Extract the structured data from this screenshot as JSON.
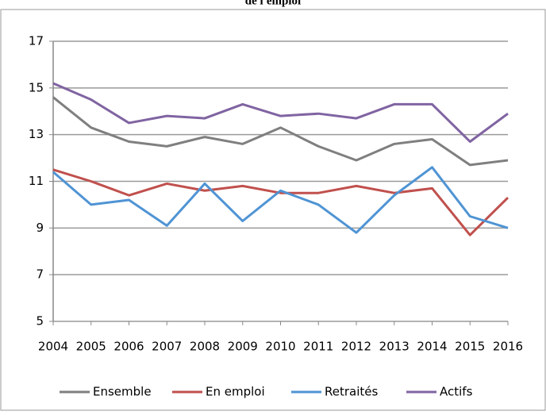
{
  "chart_data": {
    "type": "line",
    "title": "de l'emploi",
    "categories": [
      "2004",
      "2005",
      "2006",
      "2007",
      "2008",
      "2009",
      "2010",
      "2011",
      "2012",
      "2013",
      "2014",
      "2015",
      "2016"
    ],
    "series": [
      {
        "name": "Ensemble",
        "color": "#7f7f7f",
        "values": [
          14.6,
          13.3,
          12.7,
          12.5,
          12.9,
          12.6,
          13.3,
          12.5,
          11.9,
          12.6,
          12.8,
          11.7,
          11.9
        ]
      },
      {
        "name": "En emploi",
        "color": "#c0504d",
        "values": [
          11.5,
          11.0,
          10.4,
          10.9,
          10.6,
          10.8,
          10.5,
          10.5,
          10.8,
          10.5,
          10.7,
          8.7,
          10.3
        ]
      },
      {
        "name": "Retraités",
        "color": "#4f94d4",
        "values": [
          11.4,
          10.0,
          10.2,
          9.1,
          10.9,
          9.3,
          10.6,
          10.0,
          8.8,
          10.4,
          11.6,
          9.5,
          9.0
        ]
      },
      {
        "name": "Actifs",
        "color": "#8064a2",
        "values": [
          15.2,
          14.5,
          13.5,
          13.8,
          13.7,
          14.3,
          13.8,
          13.9,
          13.7,
          14.3,
          14.3,
          12.7,
          13.9
        ]
      }
    ],
    "ylim": [
      5,
      17
    ],
    "yticks": [
      5,
      7,
      9,
      11,
      13,
      15,
      17
    ],
    "grid": true,
    "legend": "bottom"
  }
}
